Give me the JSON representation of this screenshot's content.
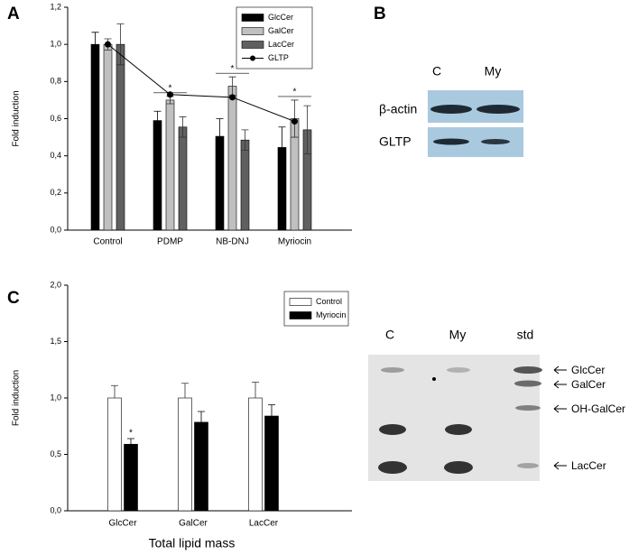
{
  "chart_data": [
    {
      "type": "bar",
      "panel": "A",
      "y_label": "Fold induction",
      "categories": [
        "Control",
        "PDMP",
        "NB-DNJ",
        "Myriocin"
      ],
      "series": [
        {
          "name": "GlcCer",
          "color": "#000000",
          "values": [
            1.0,
            0.59,
            0.505,
            0.445
          ],
          "errors": [
            0.065,
            0.05,
            0.095,
            0.11
          ]
        },
        {
          "name": "GalCer",
          "color": "#c0c0c0",
          "values": [
            1.0,
            0.7,
            0.775,
            0.6
          ],
          "errors": [
            0.03,
            0.02,
            0.05,
            0.1
          ]
        },
        {
          "name": "LacCer",
          "color": "#606060",
          "values": [
            1.0,
            0.555,
            0.485,
            0.54
          ],
          "errors": [
            0.11,
            0.055,
            0.055,
            0.13
          ]
        },
        {
          "name": "GLTP",
          "type": "line",
          "color": "#000000",
          "values": [
            1.0,
            0.73,
            0.715,
            0.585
          ]
        }
      ],
      "significance": [
        null,
        "*",
        "*",
        "*"
      ],
      "ylim": [
        0,
        1.2
      ],
      "yticks": [
        {
          "value": 0,
          "label": "0,0"
        },
        {
          "value": 0.2,
          "label": "0,2"
        },
        {
          "value": 0.4,
          "label": "0,4"
        },
        {
          "value": 0.6,
          "label": "0,6"
        },
        {
          "value": 0.8,
          "label": "0,8"
        },
        {
          "value": 1.0,
          "label": "1,0"
        },
        {
          "value": 1.2,
          "label": "1,2"
        }
      ],
      "legend": "top-right"
    },
    {
      "type": "bar",
      "panel": "C",
      "y_label": "Fold induction",
      "x_label": "Total lipid mass",
      "categories": [
        "GlcCer",
        "GalCer",
        "LacCer"
      ],
      "series": [
        {
          "name": "Control",
          "color": "#ffffff",
          "values": [
            1.0,
            1.0,
            1.0
          ],
          "errors": [
            0.11,
            0.13,
            0.14
          ]
        },
        {
          "name": "Myriocin",
          "color": "#000000",
          "values": [
            0.59,
            0.785,
            0.84
          ],
          "errors": [
            0.05,
            0.095,
            0.1
          ],
          "significance": [
            "*",
            null,
            null
          ]
        }
      ],
      "ylim": [
        0,
        2.0
      ],
      "yticks": [
        {
          "value": 0,
          "label": "0,0"
        },
        {
          "value": 0.5,
          "label": "0,5"
        },
        {
          "value": 1.0,
          "label": "1,0"
        },
        {
          "value": 1.5,
          "label": "1,5"
        },
        {
          "value": 2.0,
          "label": "2,0"
        }
      ],
      "legend": "top-right"
    }
  ],
  "blot": {
    "panel": "B",
    "lanes": [
      "C",
      "My"
    ],
    "rows": [
      "β-actin",
      "GLTP"
    ]
  },
  "tlc": {
    "lanes": [
      "C",
      "My",
      "std"
    ],
    "bands": [
      "GlcCer",
      "GalCer",
      "OH-GalCer",
      "LacCer"
    ]
  }
}
